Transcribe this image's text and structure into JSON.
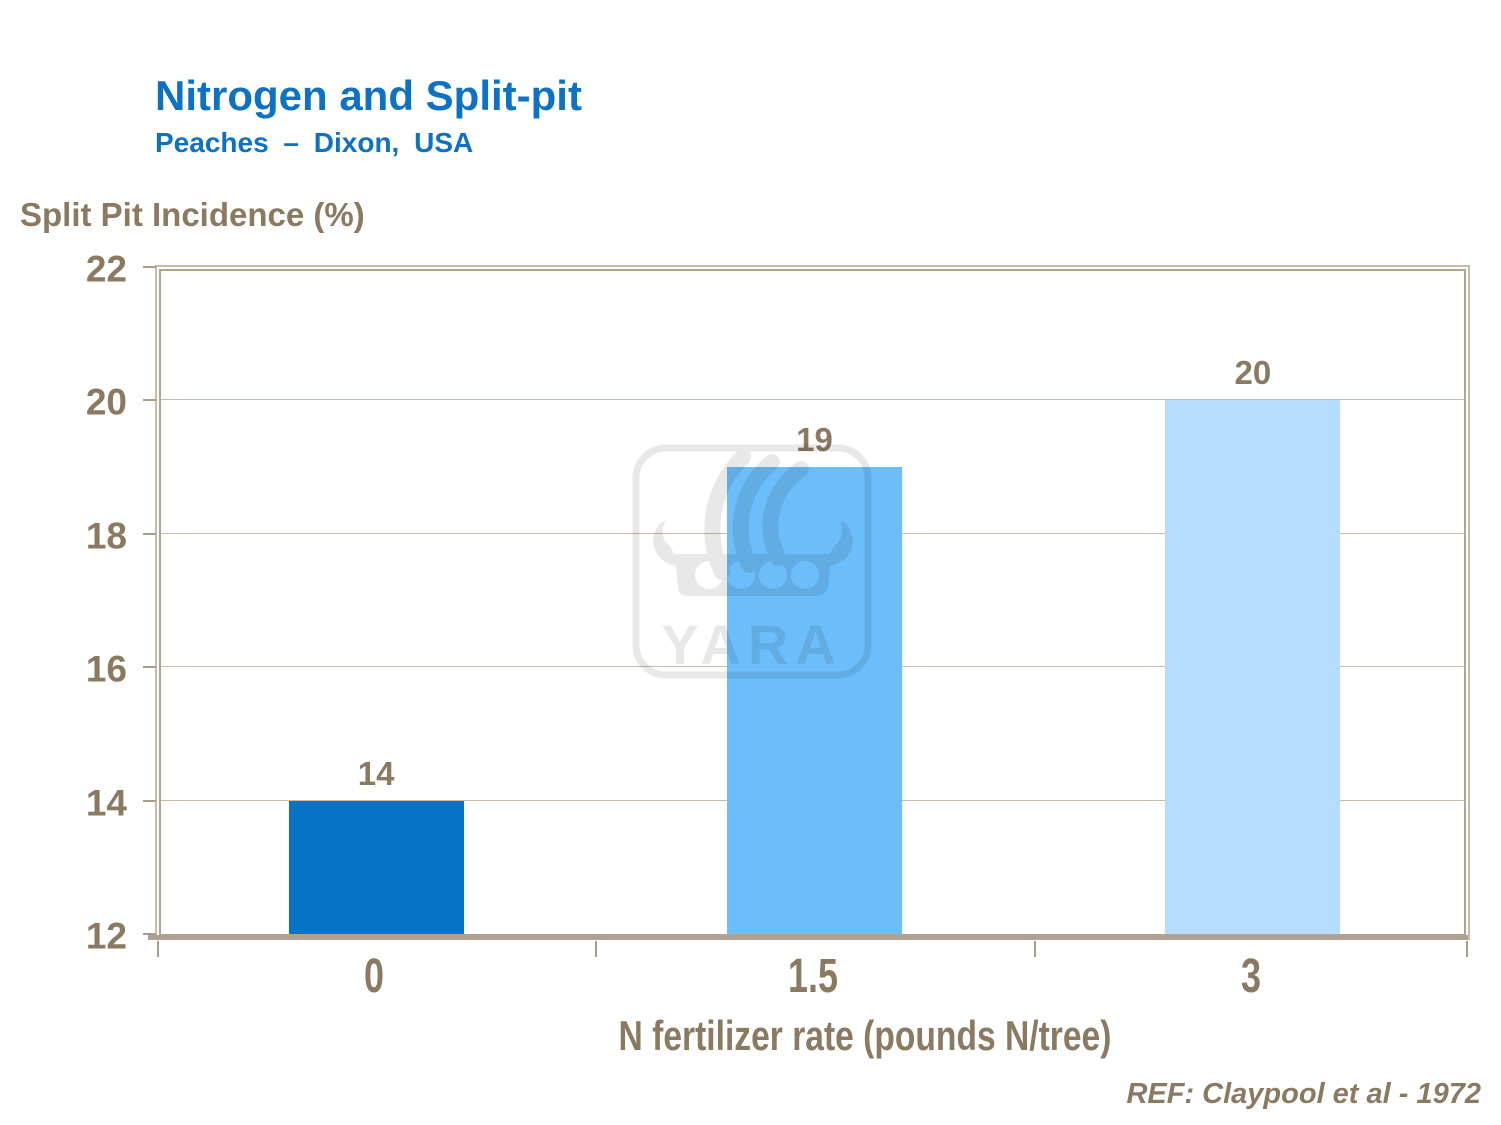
{
  "slide": {
    "title": "Nitrogen and Split-pit",
    "subtitle": "Peaches – Dixon, USA",
    "reference": "REF:  Claypool et al - 1972"
  },
  "watermark": {
    "text": "YARA"
  },
  "chart_data": {
    "type": "bar",
    "title": "Nitrogen and Split-pit — Peaches – Dixon, USA",
    "xlabel": "N fertilizer rate (pounds N/tree)",
    "ylabel": "Split Pit Incidence (%)",
    "categories": [
      "0",
      "1.5",
      "3"
    ],
    "values": [
      14,
      19,
      20
    ],
    "bar_labels": [
      "14",
      "19",
      "20"
    ],
    "ylim": [
      12,
      22
    ],
    "yticks": [
      12,
      14,
      16,
      18,
      20,
      22
    ],
    "gridlines": [
      14,
      16,
      18,
      20
    ],
    "bar_colors": [
      "#0673c4",
      "#6cbefb",
      "#b5dcfc"
    ],
    "legend_position": "none",
    "grid": "horizontal"
  },
  "colors": {
    "title_blue": "#0d72c4",
    "label_brown": "#8a7a62",
    "grid_line": "#c8bca8",
    "axis_line": "#b0a192"
  }
}
